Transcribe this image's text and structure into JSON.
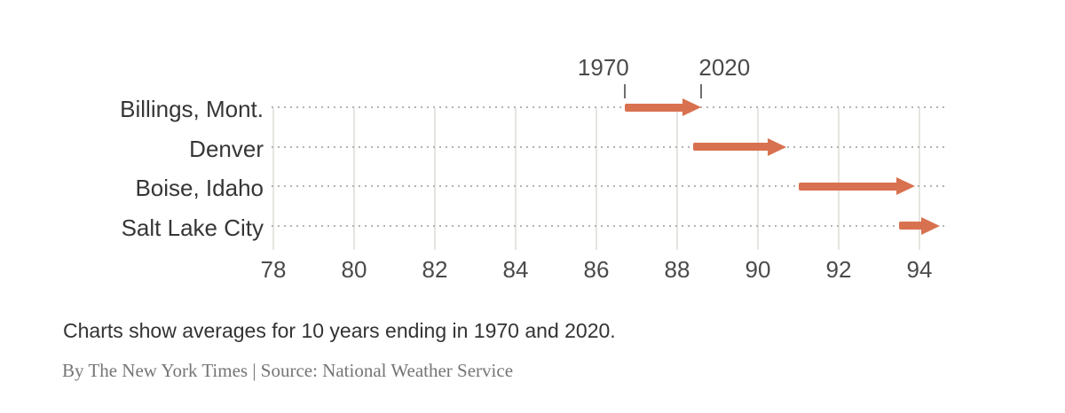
{
  "caption": "Charts show averages for 10 years ending in 1970 and 2020.",
  "credit": "By The New York Times | Source: National Weather Service",
  "chart_data": {
    "type": "arrow-range",
    "title": "",
    "xlabel": "",
    "ylabel": "",
    "xlim": [
      78,
      94.7
    ],
    "x_ticks": [
      78,
      80,
      82,
      84,
      86,
      88,
      90,
      92,
      94
    ],
    "grid": "dotted horizontal leaders per city, light solid vertical gridlines at each x tick",
    "legend_position": "ticks above first row labeled 1970 and 2020",
    "arrow_color": "#d8714f",
    "categories": [
      "Billings, Mont.",
      "Denver",
      "Boise, Idaho",
      "Salt Lake City"
    ],
    "series": [
      {
        "name": "1970",
        "values": [
          86.7,
          88.4,
          91.0,
          93.5
        ]
      },
      {
        "name": "2020",
        "values": [
          88.6,
          90.7,
          93.9,
          94.5
        ]
      }
    ],
    "rows": [
      {
        "city": "Billings, Mont.",
        "start": 86.7,
        "end": 88.6
      },
      {
        "city": "Denver",
        "start": 88.4,
        "end": 90.7
      },
      {
        "city": "Boise, Idaho",
        "start": 91.0,
        "end": 93.9
      },
      {
        "city": "Salt Lake City",
        "start": 93.5,
        "end": 94.5
      }
    ],
    "annotations": [
      {
        "label": "1970",
        "value": 86.7,
        "side": "left"
      },
      {
        "label": "2020",
        "value": 88.6,
        "side": "right"
      }
    ]
  }
}
